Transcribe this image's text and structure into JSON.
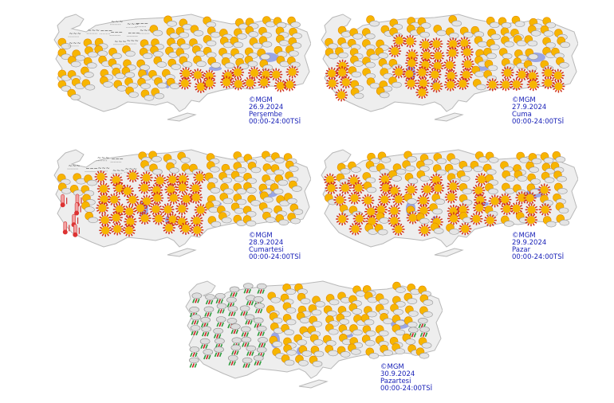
{
  "maps": [
    {
      "copyright": "©MGM",
      "date": "26.9.2024",
      "day": "Perşembe",
      "period": "00:00-24:00TSİ",
      "icons": [
        "partly-cloudy",
        "sunny",
        "hot",
        "fog"
      ]
    },
    {
      "copyright": "©MGM",
      "date": "27.9.2024",
      "day": "Cuma",
      "period": "00:00-24:00TSİ",
      "icons": [
        "partly-cloudy",
        "sunny",
        "hot"
      ]
    },
    {
      "copyright": "©MGM",
      "date": "28.9.2024",
      "day": "Cumartesi",
      "period": "00:00-24:00TSİ",
      "icons": [
        "partly-cloudy",
        "sunny",
        "hot",
        "fog"
      ]
    },
    {
      "copyright": "©MGM",
      "date": "29.9.2024",
      "day": "Pazar",
      "period": "00:00-24:00TSİ",
      "icons": [
        "partly-cloudy",
        "sunny",
        "hot",
        "rain"
      ]
    },
    {
      "copyright": "©MGM",
      "date": "30.9.2024",
      "day": "Pazartesi",
      "period": "00:00-24:00TSİ",
      "icons": [
        "partly-cloudy",
        "sunny",
        "rain-showers"
      ]
    }
  ],
  "colors": {
    "land": "#eeeeee",
    "border": "#b8b8b8",
    "lake": "#9aa6e6",
    "label": "#1a22b8",
    "sun": "#f7b500",
    "sun_rays": "#d0301a",
    "rain": "#2a9a3a"
  }
}
